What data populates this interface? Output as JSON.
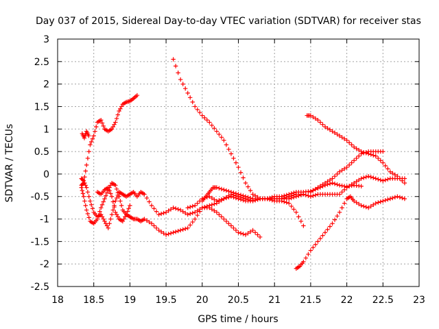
{
  "chart_data": {
    "type": "scatter",
    "title": "Day 037 of 2015, Sidereal Day-to-day VTEC variation (SDTVAR) for receiver stas",
    "xlabel": "GPS time / hours",
    "ylabel": "SDTVAR / TECUs",
    "xlim": [
      18,
      23
    ],
    "ylim": [
      -2.5,
      3
    ],
    "xticks": [
      18,
      18.5,
      19,
      19.5,
      20,
      20.5,
      21,
      21.5,
      22,
      22.5,
      23
    ],
    "xtick_labels": [
      "18",
      "18.5",
      "19",
      "19.5",
      "20",
      "20.5",
      "21",
      "21.5",
      "22",
      "22.5",
      "23"
    ],
    "yticks": [
      -2.5,
      -2,
      -1.5,
      -1,
      -0.5,
      0,
      0.5,
      1,
      1.5,
      2,
      2.5,
      3
    ],
    "ytick_labels": [
      "-2.5",
      "-2",
      "-1.5",
      "-1",
      "-0.5",
      "0",
      "0.5",
      "1",
      "1.5",
      "2",
      "2.5",
      "3"
    ],
    "grid": true,
    "marker": "+",
    "color": "#ff0000",
    "series": [
      {
        "name": "track-1",
        "x": [
          18.33,
          18.36,
          18.4,
          18.45,
          18.5,
          18.55,
          18.6,
          18.65,
          18.7,
          18.75,
          18.8,
          18.85,
          18.9,
          18.95,
          19.0,
          19.05,
          19.1
        ],
        "y": [
          -0.25,
          -0.2,
          0.2,
          0.65,
          0.85,
          1.15,
          1.2,
          1.0,
          0.95,
          1.0,
          1.15,
          1.4,
          1.55,
          1.6,
          1.62,
          1.68,
          1.75
        ]
      },
      {
        "name": "track-2",
        "x": [
          18.33,
          18.36,
          18.4,
          18.45,
          18.5,
          18.55,
          18.6,
          18.65,
          18.7,
          18.75,
          18.8,
          18.85,
          18.9,
          18.95,
          19.0,
          19.05,
          19.1,
          19.15,
          19.2,
          19.3,
          19.4,
          19.5,
          19.6,
          19.7,
          19.8,
          19.9,
          20.0,
          20.1,
          20.2,
          20.3,
          20.4,
          20.5,
          20.6,
          20.7,
          20.8
        ],
        "y": [
          -0.3,
          -0.5,
          -0.8,
          -1.05,
          -1.1,
          -1.0,
          -0.75,
          -0.55,
          -0.35,
          -0.2,
          -0.25,
          -0.5,
          -0.8,
          -0.9,
          -0.95,
          -1.0,
          -1.0,
          -1.05,
          -1.0,
          -1.1,
          -1.25,
          -1.35,
          -1.3,
          -1.25,
          -1.2,
          -1.0,
          -0.75,
          -0.75,
          -0.85,
          -1.0,
          -1.15,
          -1.3,
          -1.35,
          -1.25,
          -1.4
        ]
      },
      {
        "name": "track-3",
        "x": [
          18.33,
          18.36,
          18.4,
          18.45,
          18.5,
          18.55,
          18.6,
          18.65,
          18.7,
          18.75,
          18.8,
          18.85,
          18.9,
          18.95,
          19.0,
          19.05,
          19.1,
          19.15,
          19.2,
          19.3,
          19.4,
          19.5,
          19.6,
          19.7,
          19.8,
          19.9,
          20.0,
          20.1,
          20.2,
          20.3,
          20.4,
          20.5,
          20.6,
          20.7,
          20.8,
          20.9,
          21.0,
          21.1,
          21.2,
          21.3,
          21.4,
          21.5,
          21.6,
          21.7,
          21.8,
          21.9,
          22.0,
          22.1,
          22.2
        ],
        "y": [
          -0.1,
          -0.15,
          -0.3,
          -0.6,
          -0.85,
          -0.95,
          -0.9,
          -1.05,
          -1.2,
          -0.9,
          -0.6,
          -0.4,
          -0.45,
          -0.5,
          -0.45,
          -0.4,
          -0.5,
          -0.4,
          -0.45,
          -0.7,
          -0.9,
          -0.85,
          -0.75,
          -0.8,
          -0.9,
          -0.85,
          -0.75,
          -0.7,
          -0.65,
          -0.55,
          -0.5,
          -0.55,
          -0.6,
          -0.6,
          -0.55,
          -0.55,
          -0.5,
          -0.5,
          -0.45,
          -0.4,
          -0.4,
          -0.38,
          -0.32,
          -0.25,
          -0.2,
          -0.25,
          -0.28,
          -0.25,
          -0.27
        ]
      },
      {
        "name": "track-4",
        "x": [
          18.55,
          18.6,
          18.65,
          18.7,
          18.75,
          18.8,
          18.85,
          18.9,
          18.95,
          19.0
        ],
        "y": [
          -0.4,
          -0.45,
          -0.35,
          -0.3,
          -0.5,
          -0.85,
          -1.0,
          -1.05,
          -0.9,
          -0.7
        ]
      },
      {
        "name": "track-5",
        "x": [
          18.34,
          18.37,
          18.4,
          18.43
        ],
        "y": [
          0.9,
          0.8,
          0.95,
          0.85
        ]
      },
      {
        "name": "track-6",
        "x": [
          19.6,
          19.7,
          19.8,
          19.9,
          20.0,
          20.1,
          20.2,
          20.3,
          20.4,
          20.5,
          20.6,
          20.7,
          20.8,
          20.9,
          21.0,
          21.1,
          21.2,
          21.3,
          21.4
        ],
        "y": [
          2.55,
          2.1,
          1.8,
          1.5,
          1.3,
          1.15,
          0.95,
          0.75,
          0.45,
          0.15,
          -0.2,
          -0.45,
          -0.55,
          -0.55,
          -0.6,
          -0.6,
          -0.65,
          -0.85,
          -1.15
        ]
      },
      {
        "name": "track-7",
        "x": [
          19.8,
          19.9,
          20.0,
          20.1,
          20.2,
          20.3,
          20.4,
          20.5,
          20.6,
          20.7,
          20.8,
          20.9,
          21.0,
          21.1,
          21.2,
          21.3,
          21.4,
          21.5,
          21.6,
          21.7,
          21.8,
          21.9,
          22.0,
          22.1,
          22.2,
          22.3,
          22.4,
          22.5,
          22.6,
          22.7,
          22.8
        ],
        "y": [
          -0.75,
          -0.7,
          -0.55,
          -0.5,
          -0.6,
          -0.55,
          -0.45,
          -0.5,
          -0.55,
          -0.6,
          -0.55,
          -0.55,
          -0.55,
          -0.55,
          -0.5,
          -0.45,
          -0.45,
          -0.5,
          -0.45,
          -0.45,
          -0.45,
          -0.45,
          -0.3,
          -0.2,
          -0.1,
          -0.05,
          -0.1,
          -0.15,
          -0.1,
          -0.1,
          -0.1
        ]
      },
      {
        "name": "track-8",
        "x": [
          20.0,
          20.05,
          20.1,
          20.15,
          20.2,
          20.3,
          20.4,
          20.5,
          20.6,
          20.7,
          20.8,
          20.9,
          21.0,
          21.1,
          21.2,
          21.3,
          21.4
        ],
        "y": [
          -0.6,
          -0.5,
          -0.4,
          -0.3,
          -0.3,
          -0.35,
          -0.4,
          -0.45,
          -0.5,
          -0.55,
          -0.55,
          -0.55,
          -0.55,
          -0.55,
          -0.55,
          -0.5,
          -0.45
        ]
      },
      {
        "name": "track-9",
        "x": [
          21.45,
          21.5,
          21.6,
          21.7,
          21.8,
          21.9,
          22.0,
          22.1,
          22.2,
          22.3,
          22.4,
          22.5,
          22.6,
          22.7,
          22.8
        ],
        "y": [
          1.3,
          1.3,
          1.2,
          1.05,
          0.95,
          0.85,
          0.75,
          0.6,
          0.5,
          0.45,
          0.4,
          0.25,
          0.05,
          -0.05,
          -0.2
        ]
      },
      {
        "name": "track-10",
        "x": [
          21.3,
          21.35,
          21.4,
          21.5,
          21.6,
          21.7,
          21.8,
          21.9,
          22.0,
          22.05,
          22.1,
          22.2,
          22.3,
          22.4,
          22.5,
          22.6,
          22.7,
          22.8
        ],
        "y": [
          -2.1,
          -2.05,
          -1.95,
          -1.7,
          -1.5,
          -1.3,
          -1.1,
          -0.85,
          -0.55,
          -0.5,
          -0.6,
          -0.7,
          -0.75,
          -0.65,
          -0.6,
          -0.55,
          -0.5,
          -0.55
        ]
      },
      {
        "name": "track-11",
        "x": [
          21.5,
          21.6,
          21.7,
          21.8,
          21.9,
          22.0,
          22.1,
          22.2,
          22.3,
          22.4,
          22.5
        ],
        "y": [
          -0.4,
          -0.3,
          -0.2,
          -0.1,
          0.05,
          0.15,
          0.3,
          0.45,
          0.5,
          0.5,
          0.5
        ]
      }
    ]
  }
}
